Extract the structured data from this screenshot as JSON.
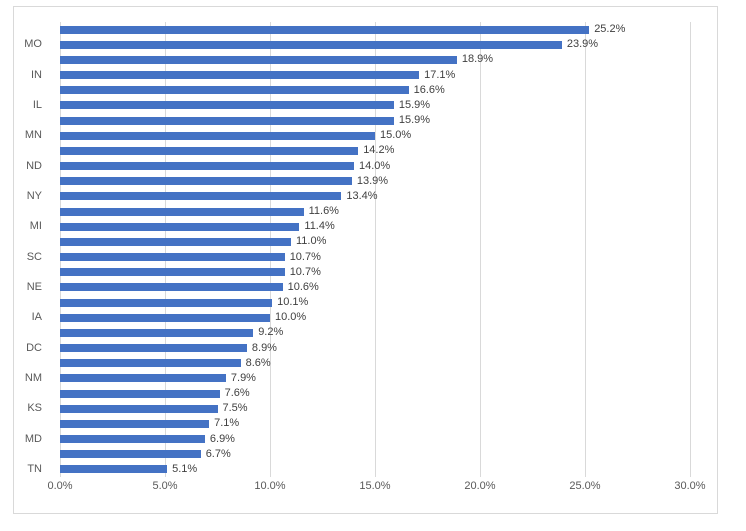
{
  "chart_data": {
    "type": "bar",
    "orientation": "horizontal",
    "title": "",
    "xlabel": "",
    "ylabel": "",
    "xlim": [
      0,
      30
    ],
    "grid": "vertical",
    "legend": "none",
    "categories": [
      "",
      "MO",
      "",
      "IN",
      "",
      "IL",
      "",
      "MN",
      "",
      "ND",
      "",
      "NY",
      "",
      "MI",
      "",
      "SC",
      "",
      "NE",
      "",
      "IA",
      "",
      "DC",
      "",
      "NM",
      "",
      "KS",
      "",
      "MD",
      "",
      "TN"
    ],
    "values": [
      25.2,
      23.9,
      18.9,
      17.1,
      16.6,
      15.9,
      15.9,
      15.0,
      14.2,
      14.0,
      13.9,
      13.4,
      11.6,
      11.4,
      11.0,
      10.7,
      10.7,
      10.6,
      10.1,
      10.0,
      9.2,
      8.9,
      8.6,
      7.9,
      7.6,
      7.5,
      7.1,
      6.9,
      6.7,
      5.1
    ],
    "data_labels": [
      "25.2%",
      "23.9%",
      "18.9%",
      "17.1%",
      "16.6%",
      "15.9%",
      "15.9%",
      "15.0%",
      "14.2%",
      "14.0%",
      "13.9%",
      "13.4%",
      "11.6%",
      "11.4%",
      "11.0%",
      "10.7%",
      "10.7%",
      "10.6%",
      "10.1%",
      "10.0%",
      "9.2%",
      "8.9%",
      "8.6%",
      "7.9%",
      "7.6%",
      "7.5%",
      "7.1%",
      "6.9%",
      "6.7%",
      "5.1%"
    ],
    "x_tick_labels": [
      "0.0%",
      "5.0%",
      "10.0%",
      "15.0%",
      "20.0%",
      "25.0%",
      "30.0%"
    ],
    "x_tick_values": [
      0,
      5,
      10,
      15,
      20,
      25,
      30
    ],
    "colors": {
      "bar": "#4472C4",
      "gridline": "#D9D9D9",
      "chart_border": "#D9D9D9",
      "axis_text": "#595959",
      "data_label_text": "#404040",
      "background": "#FFFFFF"
    }
  }
}
